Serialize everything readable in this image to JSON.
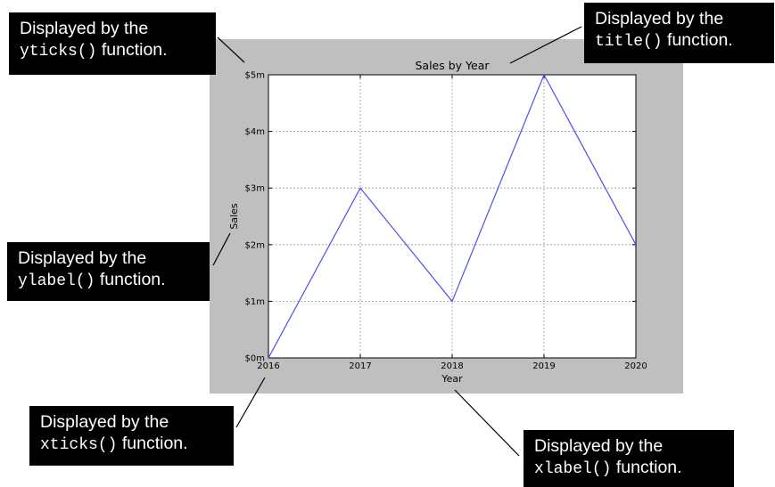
{
  "chart_data": {
    "type": "line",
    "title": "Sales by Year",
    "xlabel": "Year",
    "ylabel": "Sales",
    "x": [
      2016,
      2017,
      2018,
      2019,
      2020
    ],
    "x_tick_labels": [
      "2016",
      "2017",
      "2018",
      "2019",
      "2020"
    ],
    "y_tick_values": [
      0,
      1,
      2,
      3,
      4,
      5
    ],
    "y_tick_labels": [
      "$0m",
      "$1m",
      "$2m",
      "$3m",
      "$4m",
      "$5m"
    ],
    "series": [
      {
        "values": [
          0,
          3,
          1,
          5,
          2
        ],
        "color": "#4f4ff0"
      }
    ],
    "xlim": [
      2016,
      2020
    ],
    "ylim": [
      0,
      5
    ],
    "grid": true,
    "figure_background": "#bfbfbf",
    "plot_background": "#ffffff"
  },
  "annotations": {
    "yticks": {
      "prefix": "Displayed by the",
      "code": "yticks()",
      "suffix": "function."
    },
    "title": {
      "prefix": "Displayed by the",
      "code": "title()",
      "suffix": "function."
    },
    "ylabel": {
      "prefix": "Displayed by the",
      "code": "ylabel()",
      "suffix": "function."
    },
    "xticks": {
      "prefix": "Displayed by the",
      "code": "xticks()",
      "suffix": "function."
    },
    "xlabel": {
      "prefix": "Displayed by the",
      "code": "xlabel()",
      "suffix": "function."
    }
  }
}
